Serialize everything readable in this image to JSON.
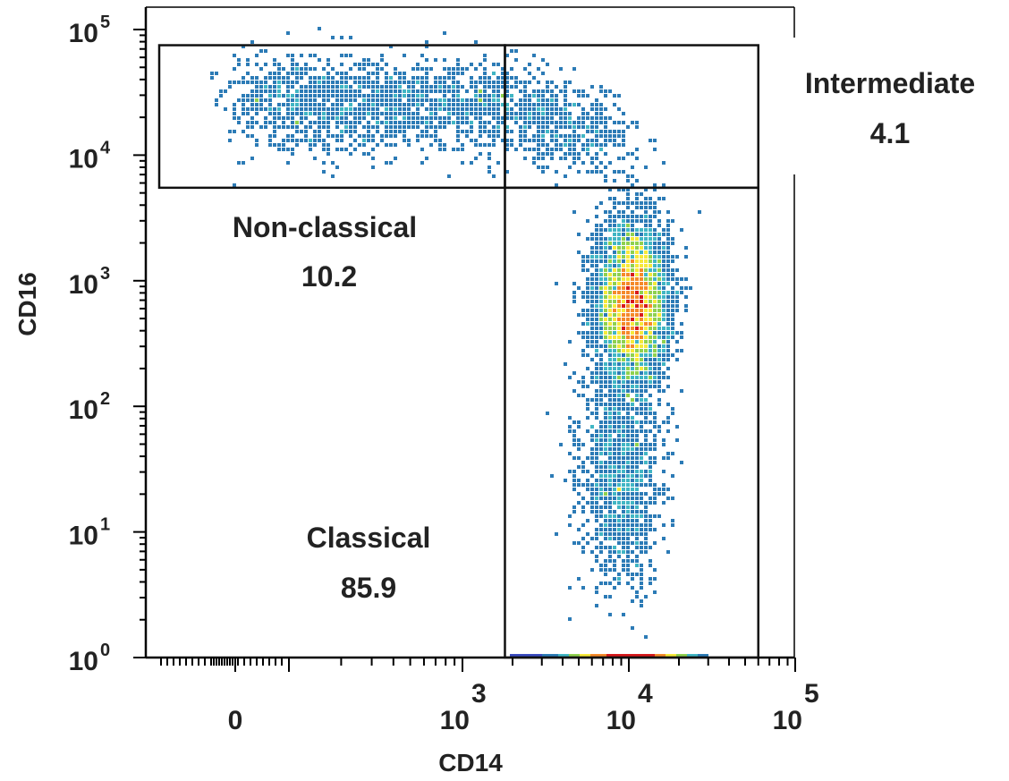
{
  "chart_data": {
    "type": "scatter",
    "title": "",
    "xlabel": "CD14",
    "ylabel": "CD16",
    "x_scale": "biexponential",
    "y_scale": "log",
    "xlim": [
      -300,
      100000
    ],
    "ylim": [
      1,
      100000
    ],
    "x_tick_labels": [
      {
        "value": 0,
        "base": "0",
        "exp": ""
      },
      {
        "value": 1000,
        "base": "10",
        "exp": "3"
      },
      {
        "value": 10000,
        "base": "10",
        "exp": "4"
      },
      {
        "value": 100000,
        "base": "10",
        "exp": "5"
      }
    ],
    "y_tick_labels": [
      {
        "value": 1,
        "base": "10",
        "exp": "0"
      },
      {
        "value": 10,
        "base": "10",
        "exp": "1"
      },
      {
        "value": 100,
        "base": "10",
        "exp": "2"
      },
      {
        "value": 1000,
        "base": "10",
        "exp": "3"
      },
      {
        "value": 10000,
        "base": "10",
        "exp": "4"
      },
      {
        "value": 100000,
        "base": "10",
        "exp": "5"
      }
    ],
    "colormap": [
      "#3b4cc0",
      "#2c7bb6",
      "#41b6c4",
      "#8fd14f",
      "#f6e93a",
      "#f58a2a",
      "#d7191c"
    ],
    "populations": [
      {
        "name": "main_cluster",
        "cx": 10500,
        "cy": 650,
        "sx_log": 0.11,
        "sy_log": 0.33,
        "density": 1.0
      },
      {
        "name": "top_band",
        "cx": 700,
        "cy": 25000,
        "sx_log": 0.45,
        "sy_log": 0.18,
        "density": 0.45
      },
      {
        "name": "tail",
        "cx": 9000,
        "cy": 25,
        "sx_log": 0.12,
        "sy_log": 0.4,
        "density": 0.25
      }
    ],
    "gates": [
      {
        "name": "Non-classical",
        "value": "10.2",
        "x_range": [
          -300,
          1800
        ],
        "y_range": [
          5500,
          75000
        ]
      },
      {
        "name": "Intermediate",
        "value": "4.1",
        "x_range": [
          1800,
          60000
        ],
        "y_range": [
          5500,
          75000
        ]
      },
      {
        "name": "Classical",
        "value": "85.9",
        "x_range": [
          1800,
          60000
        ],
        "y_range": [
          1,
          5500
        ]
      }
    ],
    "grid": false,
    "legend": "none"
  }
}
